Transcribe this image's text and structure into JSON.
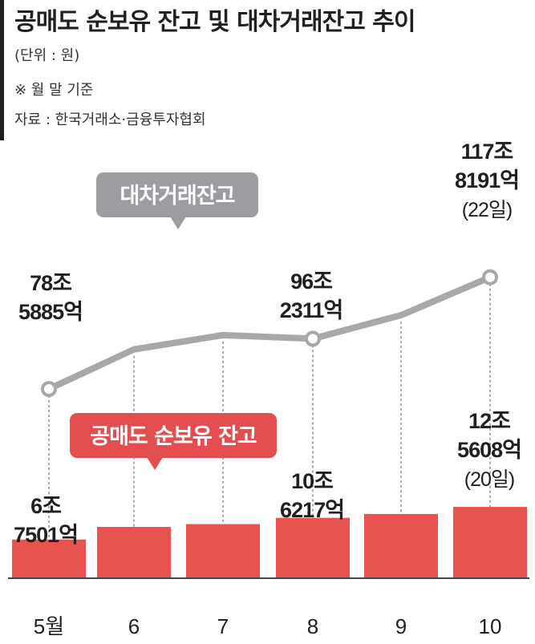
{
  "header": {
    "title": "공매도 순보유 잔고 및 대차거래잔고 추이",
    "unit": "(단위 : 원)",
    "basis": "※ 월 말 기준",
    "source": "자료 : 한국거래소·금융투자협회"
  },
  "colors": {
    "bar": "#e8534f",
    "line": "#a6a8ab",
    "callout_gray": "#9b9da0",
    "callout_red": "#e34e4e",
    "text": "#231f20"
  },
  "chart_data": {
    "type": "bar+line",
    "categories": [
      "5월",
      "6",
      "7",
      "8",
      "9",
      "10"
    ],
    "series": [
      {
        "name": "공매도 순보유 잔고",
        "kind": "bar",
        "values": [
          6.75,
          9.0,
          9.5,
          10.62,
          11.3,
          12.56
        ]
      },
      {
        "name": "대차거래잔고",
        "kind": "line",
        "values": [
          78.59,
          92.5,
          97.5,
          96.23,
          104.5,
          117.82
        ]
      }
    ],
    "callouts": {
      "line": "대차거래잔고",
      "bar": "공매도 순보유 잔고"
    },
    "line_labels": [
      {
        "index": 0,
        "lines": [
          "78조",
          "5885억"
        ]
      },
      {
        "index": 3,
        "lines": [
          "96조",
          "2311억"
        ]
      },
      {
        "index": 5,
        "lines": [
          "117조",
          "8191억",
          "(22일)"
        ]
      }
    ],
    "bar_labels": [
      {
        "index": 0,
        "lines": [
          "6조",
          "7501억"
        ]
      },
      {
        "index": 3,
        "lines": [
          "10조",
          "6217억"
        ]
      },
      {
        "index": 5,
        "lines": [
          "12조",
          "5608억",
          "(20일)"
        ]
      }
    ],
    "highlight_points": [
      0,
      3,
      5
    ]
  }
}
